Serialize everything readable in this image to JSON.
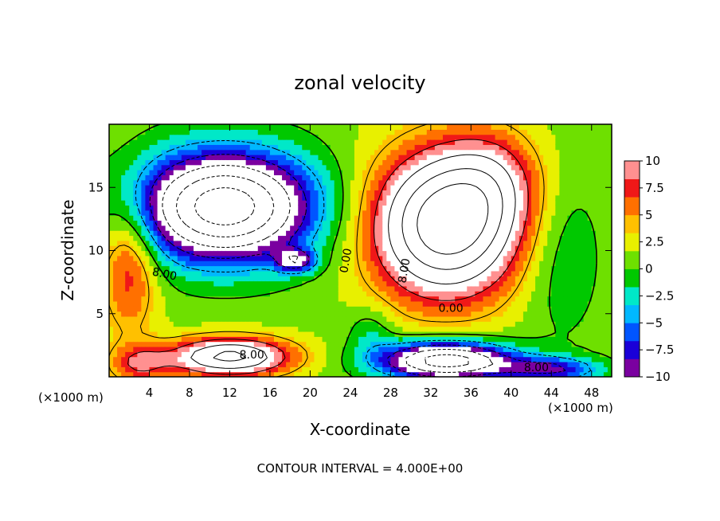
{
  "chart_data": {
    "type": "heatmap",
    "title": "zonal velocity",
    "xlabel": "X-coordinate",
    "ylabel": "Z-coordinate",
    "x_unit": "(×1000 m)",
    "y_unit": "(×1000 m)",
    "footer": "CONTOUR INTERVAL = 4.000E+00",
    "xlim": [
      0,
      50
    ],
    "ylim": [
      0,
      20
    ],
    "x_ticks": [
      4,
      8,
      12,
      16,
      20,
      24,
      28,
      32,
      36,
      40,
      44,
      48
    ],
    "y_ticks": [
      5,
      10,
      15
    ],
    "colorbar": {
      "min": -10,
      "max": 10,
      "tick_values": [
        10,
        7.5,
        5,
        2.5,
        0,
        -2.5,
        -5,
        -7.5,
        -10
      ],
      "tick_labels": [
        "10",
        "7.5",
        "5",
        "2.5",
        "0",
        "−2.5",
        "−5",
        "−7.5",
        "−10"
      ],
      "colors": [
        "#7a00a0",
        "#1a00d8",
        "#0055ff",
        "#00b8ff",
        "#00e8c8",
        "#00c800",
        "#6ee000",
        "#e8f000",
        "#ffc000",
        "#ff7000",
        "#f01818",
        "#ff9090"
      ],
      "out_of_range_color": "#ffffff"
    },
    "contour_labels": [
      {
        "text": "8.00",
        "x": 5.5,
        "y": 8.1,
        "angle": 12
      },
      {
        "text": "0.00",
        "x": 23.6,
        "y": 9.2,
        "angle": -80
      },
      {
        "text": "8.00",
        "x": 29.4,
        "y": 8.4,
        "angle": -80
      },
      {
        "text": "0.00",
        "x": 34.0,
        "y": 5.4,
        "angle": 0
      },
      {
        "text": "8.00",
        "x": 14.2,
        "y": 1.7,
        "angle": 0
      },
      {
        "text": "8.00",
        "x": 42.5,
        "y": 0.7,
        "angle": 0
      }
    ],
    "features": [
      {
        "name": "negative jet core",
        "x": 11.5,
        "y": 13.5,
        "value": -14,
        "note": "white center (below -10)"
      },
      {
        "name": "positive jet core",
        "x": 33.5,
        "y": 12.0,
        "value": 14,
        "note": "white center (above 10)"
      },
      {
        "name": "small negative eddy",
        "x": 18.6,
        "y": 9.2,
        "value": -11
      },
      {
        "name": "near-surface positive core",
        "x": 12.0,
        "y": 1.8,
        "value": 12
      },
      {
        "name": "near-surface negative core",
        "x": 33.5,
        "y": 1.6,
        "value": -12
      }
    ]
  }
}
